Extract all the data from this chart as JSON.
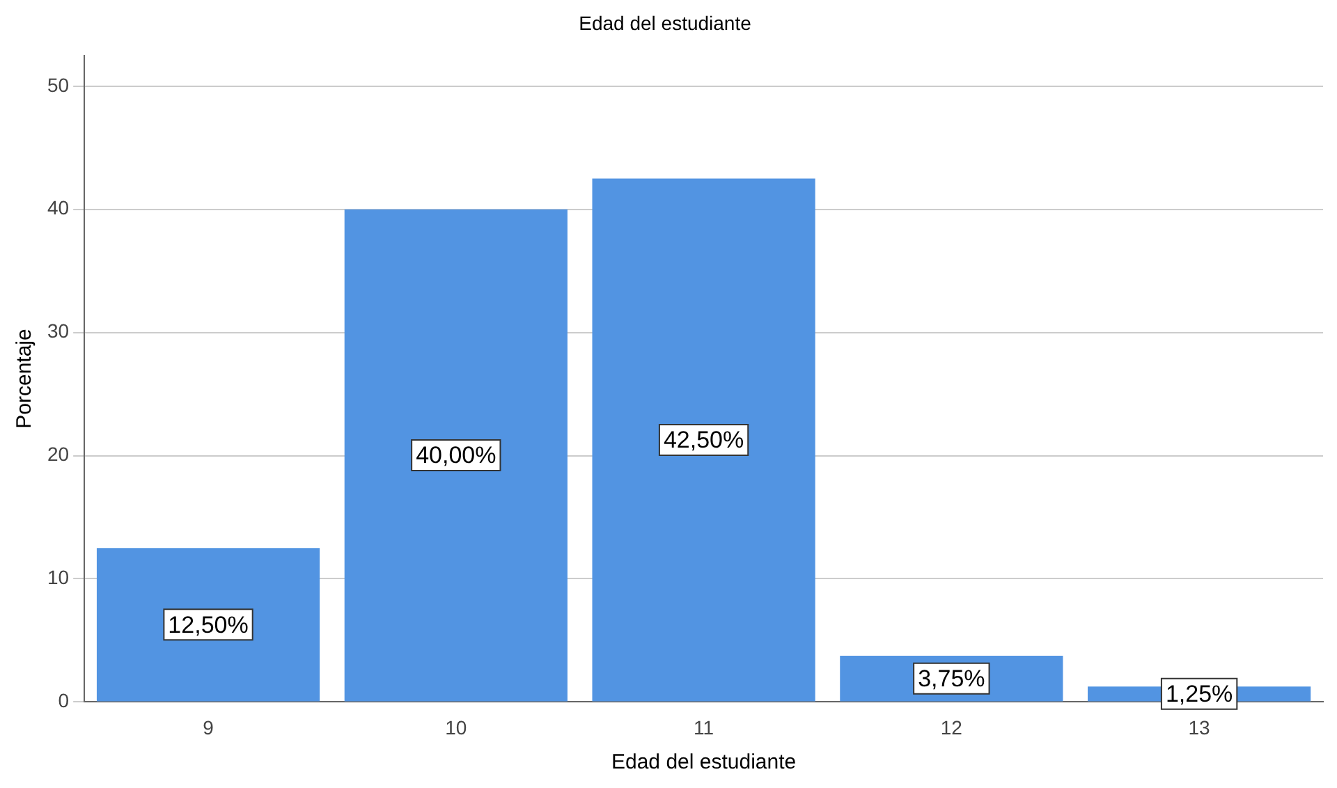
{
  "chart_data": {
    "type": "bar",
    "title": "Edad del estudiante",
    "xlabel": "Edad del estudiante",
    "ylabel": "Porcentaje",
    "categories": [
      "9",
      "10",
      "11",
      "12",
      "13"
    ],
    "values": [
      12.5,
      40.0,
      42.5,
      3.75,
      1.25
    ],
    "value_labels": [
      "12,50%",
      "40,00%",
      "42,50%",
      "3,75%",
      "1,25%"
    ],
    "color": "#5294e2",
    "ylim": [
      0,
      52.5
    ],
    "yticks": [
      0,
      10,
      20,
      30,
      40,
      50
    ],
    "grid": "y",
    "legend": false
  }
}
